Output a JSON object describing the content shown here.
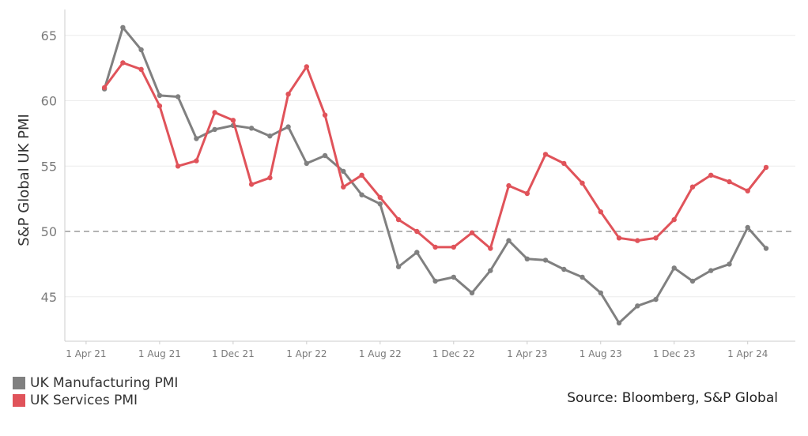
{
  "chart_data": {
    "type": "line",
    "ylabel": "S&P Global UK PMI",
    "xlabel": "",
    "ylim": [
      42,
      67
    ],
    "yticks": [
      45,
      50,
      55,
      60,
      65
    ],
    "reference_line": {
      "y": 50,
      "style": "dashed",
      "color": "#b3b3b3"
    },
    "grid": true,
    "legend_position": "bottom-left",
    "x": [
      "2021-05",
      "2021-06",
      "2021-07",
      "2021-08",
      "2021-09",
      "2021-10",
      "2021-11",
      "2021-12",
      "2022-01",
      "2022-02",
      "2022-03",
      "2022-04",
      "2022-05",
      "2022-06",
      "2022-07",
      "2022-08",
      "2022-09",
      "2022-10",
      "2022-11",
      "2022-12",
      "2023-01",
      "2023-02",
      "2023-03",
      "2023-04",
      "2023-05",
      "2023-06",
      "2023-07",
      "2023-08",
      "2023-09",
      "2023-10",
      "2023-11",
      "2023-12",
      "2024-01",
      "2024-02",
      "2024-03",
      "2024-04",
      "2024-05"
    ],
    "x_tick_labels": [
      "1 Apr 21",
      "1 Aug 21",
      "1 Dec 21",
      "1 Apr 22",
      "1 Aug 22",
      "1 Dec 22",
      "1 Apr 23",
      "1 Aug 23",
      "1 Dec 23",
      "1 Apr 24"
    ],
    "x_tick_months": [
      "2021-04",
      "2021-08",
      "2021-12",
      "2022-04",
      "2022-08",
      "2022-12",
      "2023-04",
      "2023-08",
      "2023-12",
      "2024-04"
    ],
    "series": [
      {
        "name": "UK Manufacturing PMI",
        "color": "#808080",
        "values": [
          60.9,
          65.6,
          63.9,
          60.4,
          60.3,
          57.1,
          57.8,
          58.1,
          57.9,
          57.3,
          58.0,
          55.2,
          55.8,
          54.6,
          52.8,
          52.1,
          47.3,
          48.4,
          46.2,
          46.5,
          45.3,
          47.0,
          49.3,
          47.9,
          47.8,
          47.1,
          46.5,
          45.3,
          43.0,
          44.3,
          44.8,
          47.2,
          46.2,
          47.0,
          47.5,
          50.3,
          48.7
        ]
      },
      {
        "name": "UK Services PMI",
        "color": "#e0535a",
        "values": [
          61.0,
          62.9,
          62.4,
          59.6,
          55.0,
          55.4,
          59.1,
          58.5,
          53.6,
          54.1,
          60.5,
          62.6,
          58.9,
          53.4,
          54.3,
          52.6,
          50.9,
          50.0,
          48.8,
          48.8,
          49.9,
          48.7,
          53.5,
          52.9,
          55.9,
          55.2,
          53.7,
          51.5,
          49.5,
          49.3,
          49.5,
          50.9,
          53.4,
          54.3,
          53.8,
          53.1,
          54.9
        ]
      }
    ]
  },
  "legend": {
    "items": [
      {
        "label": "UK Manufacturing PMI",
        "color": "#808080"
      },
      {
        "label": "UK Services PMI",
        "color": "#e0535a"
      }
    ]
  },
  "source": "Source: Bloomberg, S&P Global"
}
